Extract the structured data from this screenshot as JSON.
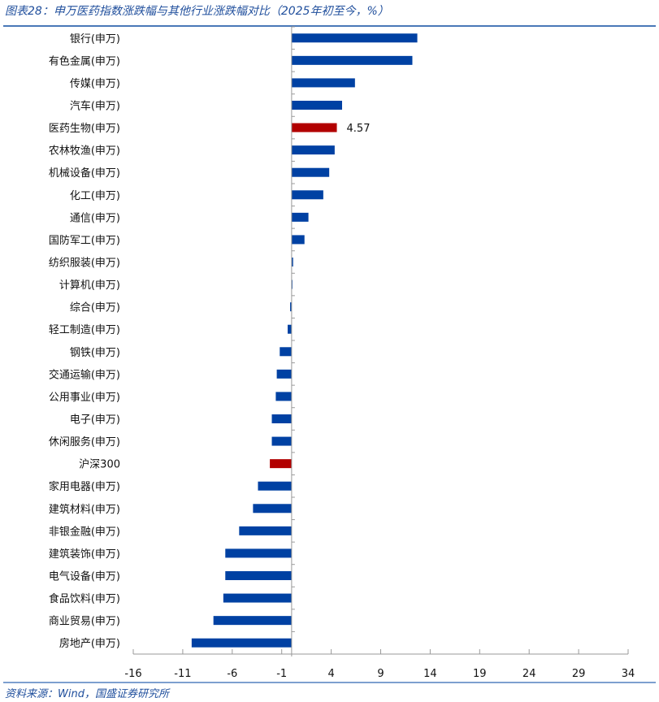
{
  "title": "图表28：申万医药指数涨跌幅与其他行业涨跌幅对比（2025年初至今，%）",
  "source": "资料来源：Wind，国盛证券研究所",
  "chart_data": {
    "type": "bar",
    "orientation": "horizontal",
    "title": "图表28：申万医药指数涨跌幅与其他行业涨跌幅对比（2025年初至今，%）",
    "categories": [
      "银行(申万)",
      "有色金属(申万)",
      "传媒(申万)",
      "汽车(申万)",
      "医药生物(申万)",
      "农林牧渔(申万)",
      "机械设备(申万)",
      "化工(申万)",
      "通信(申万)",
      "国防军工(申万)",
      "纺织服装(申万)",
      "计算机(申万)",
      "综合(申万)",
      "轻工制造(申万)",
      "钢铁(申万)",
      "交通运输(申万)",
      "公用事业(申万)",
      "电子(申万)",
      "休闲服务(申万)",
      "沪深300",
      "家用电器(申万)",
      "建筑材料(申万)",
      "非银金融(申万)",
      "建筑装饰(申万)",
      "电气设备(申万)",
      "食品饮料(申万)",
      "商业贸易(申万)",
      "房地产(申万)"
    ],
    "values": [
      12.7,
      12.2,
      6.4,
      5.1,
      4.57,
      4.35,
      3.8,
      3.2,
      1.7,
      1.3,
      0.15,
      0.05,
      -0.15,
      -0.4,
      -1.2,
      -1.5,
      -1.6,
      -2.0,
      -2.0,
      -2.2,
      -3.4,
      -3.9,
      -5.3,
      -6.7,
      -6.7,
      -6.9,
      -7.9,
      -10.1
    ],
    "highlight": [
      "医药生物(申万)",
      "沪深300"
    ],
    "data_labels": [
      {
        "category": "医药生物(申万)",
        "text": "4.57"
      }
    ],
    "xlim": [
      -16,
      34
    ],
    "xticks": [
      -16,
      -11,
      -6,
      -1,
      4,
      9,
      14,
      19,
      24,
      29,
      34
    ],
    "grid": false,
    "colors": {
      "default": "#0041a3",
      "highlight": "#b20000"
    }
  }
}
